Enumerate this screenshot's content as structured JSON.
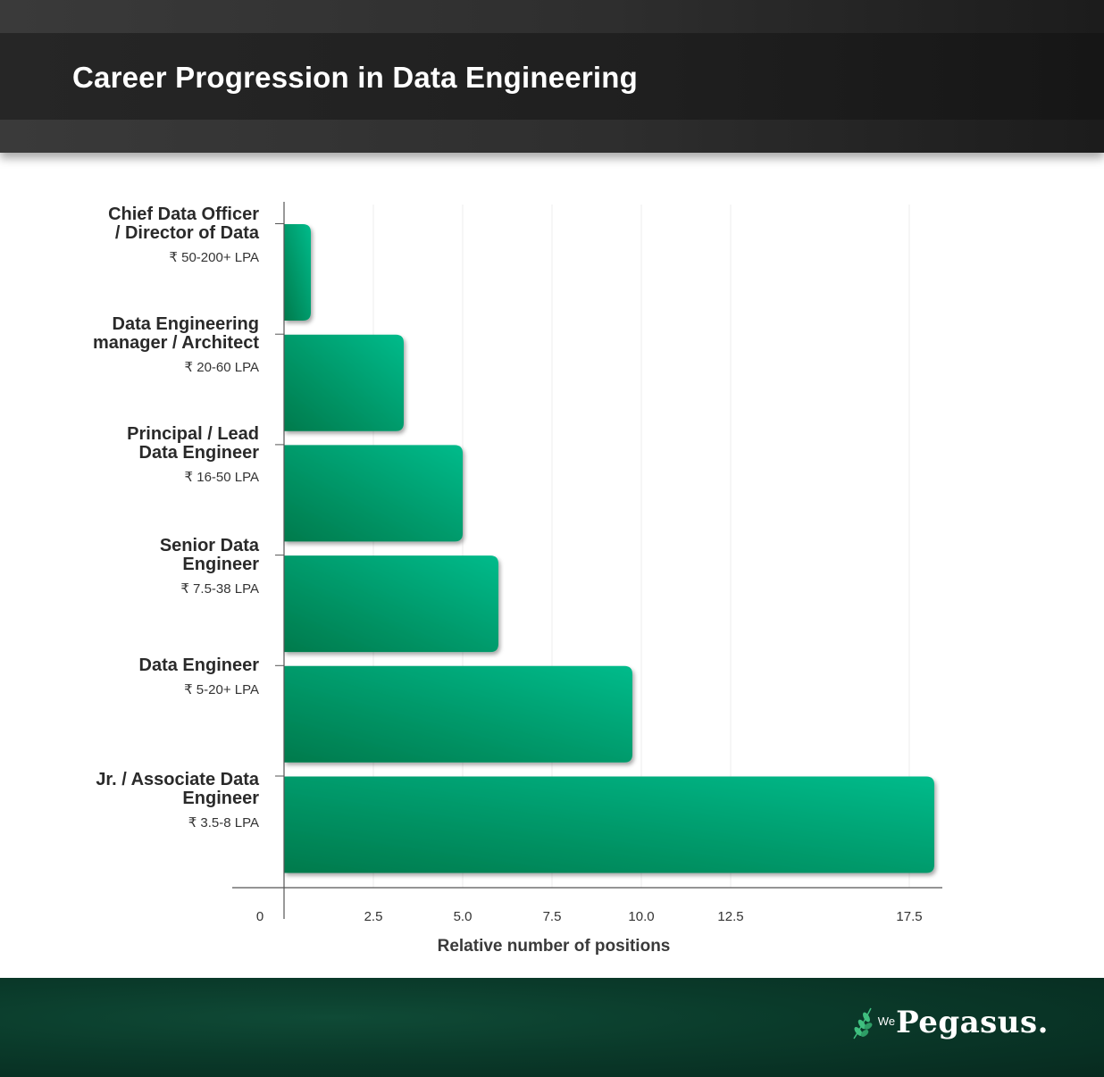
{
  "header": {
    "title": "Career Progression in Data Engineering"
  },
  "brand": {
    "prefix": "We",
    "name": "Pegasus.",
    "accent": "#00b386"
  },
  "colors": {
    "bar_dark": "#007a4c",
    "bar_light": "#00bb8b",
    "header_bg": "#2b2b2b",
    "footer_bg": "#0a3a2a"
  },
  "chart_data": {
    "type": "bar",
    "orientation": "horizontal",
    "categories": [
      {
        "title": [
          "Chief Data Officer",
          "/ Director of Data"
        ],
        "salary": "₹ 50-200+ LPA"
      },
      {
        "title": [
          "Data Engineering",
          "manager / Architect"
        ],
        "salary": "₹ 20-60 LPA"
      },
      {
        "title": [
          "Principal / Lead",
          "Data Engineer"
        ],
        "salary": "₹ 16-50 LPA"
      },
      {
        "title": [
          "Senior Data",
          "Engineer"
        ],
        "salary": "₹ 7.5-38 LPA"
      },
      {
        "title": [
          "Data Engineer"
        ],
        "salary": "₹ 5-20+ LPA"
      },
      {
        "title": [
          "Jr. / Associate Data",
          "Engineer"
        ],
        "salary": "₹ 3.5-8 LPA"
      }
    ],
    "values": [
      0.75,
      3.35,
      5.0,
      6.0,
      9.75,
      18.2
    ],
    "xlabel": "Relative number of positions",
    "xticks": [
      "0",
      "2.5",
      "5.0",
      "7.5",
      "10.0",
      "12.5",
      "17.5"
    ],
    "xtick_values": [
      0,
      2.5,
      5.0,
      7.5,
      10.0,
      12.5,
      17.5
    ],
    "xlim": [
      0,
      18.4
    ],
    "grid": true
  }
}
